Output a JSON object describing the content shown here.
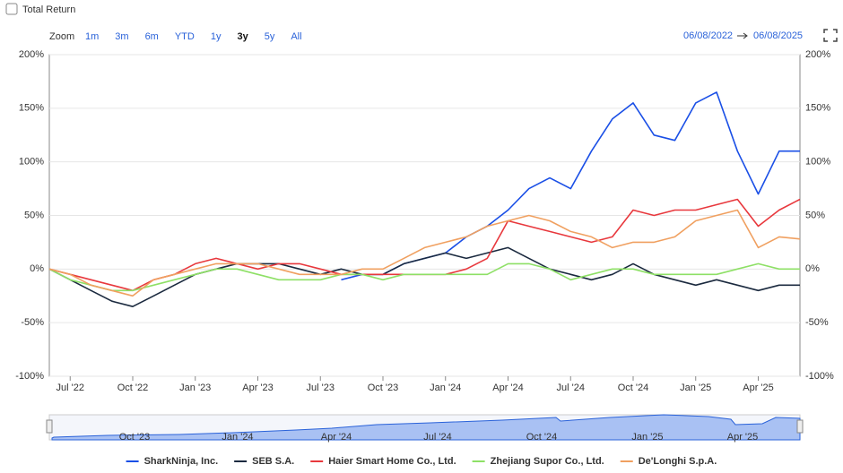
{
  "controls": {
    "total_return": "Total Return",
    "zoom_label": "Zoom",
    "zoom_options": [
      "1m",
      "3m",
      "6m",
      "YTD",
      "1y",
      "3y",
      "5y",
      "All"
    ],
    "active_zoom": "3y",
    "start_date": "06/08/2022",
    "end_date": "06/08/2025"
  },
  "navigator": {
    "labels": [
      "Oct '23",
      "Jan '24",
      "Apr '24",
      "Jul '24",
      "Oct '24",
      "Jan '25",
      "Apr '25"
    ]
  },
  "chart_data": {
    "type": "line",
    "categories": [
      null,
      "Jul '22",
      null,
      null,
      "Oct '22",
      null,
      null,
      "Jan '23",
      null,
      null,
      "Apr '23",
      null,
      null,
      "Jul '23",
      null,
      null,
      "Oct '23",
      null,
      null,
      "Jan '24",
      null,
      null,
      "Apr '24",
      null,
      null,
      "Jul '24",
      null,
      null,
      "Oct '24",
      null,
      null,
      "Jan '25",
      null,
      null,
      "Apr '25",
      null,
      null
    ],
    "series": [
      {
        "name": "SharkNinja, Inc.",
        "color": "#1a4fe6",
        "values": [
          null,
          null,
          null,
          null,
          null,
          null,
          null,
          null,
          null,
          null,
          null,
          null,
          null,
          null,
          -10,
          -5,
          -5,
          5,
          10,
          15,
          30,
          40,
          55,
          75,
          85,
          75,
          110,
          140,
          155,
          125,
          120,
          155,
          165,
          110,
          70,
          110,
          110
        ]
      },
      {
        "name": "SEB S.A.",
        "color": "#1b2a3f",
        "values": [
          0,
          -10,
          -20,
          -30,
          -35,
          -25,
          -15,
          -5,
          0,
          5,
          5,
          5,
          0,
          -5,
          0,
          -5,
          -5,
          5,
          10,
          15,
          10,
          15,
          20,
          10,
          0,
          -5,
          -10,
          -5,
          5,
          -5,
          -10,
          -15,
          -10,
          -15,
          -20,
          -15,
          -15
        ]
      },
      {
        "name": "Haier Smart Home Co., Ltd.",
        "color": "#e8383d",
        "values": [
          0,
          -5,
          -10,
          -15,
          -20,
          -10,
          -5,
          5,
          10,
          5,
          0,
          5,
          5,
          0,
          -5,
          -5,
          -5,
          -5,
          -5,
          -5,
          0,
          10,
          45,
          40,
          35,
          30,
          25,
          30,
          55,
          50,
          55,
          55,
          60,
          65,
          40,
          55,
          65
        ]
      },
      {
        "name": "Zhejiang Supor Co., Ltd.",
        "color": "#8ee066",
        "values": [
          0,
          -10,
          -15,
          -20,
          -20,
          -15,
          -10,
          -5,
          0,
          0,
          -5,
          -10,
          -10,
          -10,
          -5,
          -5,
          -10,
          -5,
          -5,
          -5,
          -5,
          -5,
          5,
          5,
          0,
          -10,
          -5,
          0,
          0,
          -5,
          -5,
          -5,
          -5,
          0,
          5,
          0,
          0
        ]
      },
      {
        "name": "De'Longhi S.p.A.",
        "color": "#f0a060",
        "values": [
          0,
          -5,
          -15,
          -20,
          -25,
          -10,
          -5,
          0,
          5,
          5,
          5,
          0,
          -5,
          -5,
          -5,
          0,
          0,
          10,
          20,
          25,
          30,
          40,
          45,
          50,
          45,
          35,
          30,
          20,
          25,
          25,
          30,
          45,
          50,
          55,
          20,
          30,
          28
        ]
      }
    ],
    "ylim": [
      -100,
      200
    ],
    "yticks": [
      {
        "value": -100,
        "label": "-100%"
      },
      {
        "value": -50,
        "label": "-50%"
      },
      {
        "value": 0,
        "label": "0%"
      },
      {
        "value": 50,
        "label": "50%"
      },
      {
        "value": 100,
        "label": "100%"
      },
      {
        "value": 150,
        "label": "150%"
      },
      {
        "value": 200,
        "label": "200%"
      }
    ],
    "grid": true
  }
}
